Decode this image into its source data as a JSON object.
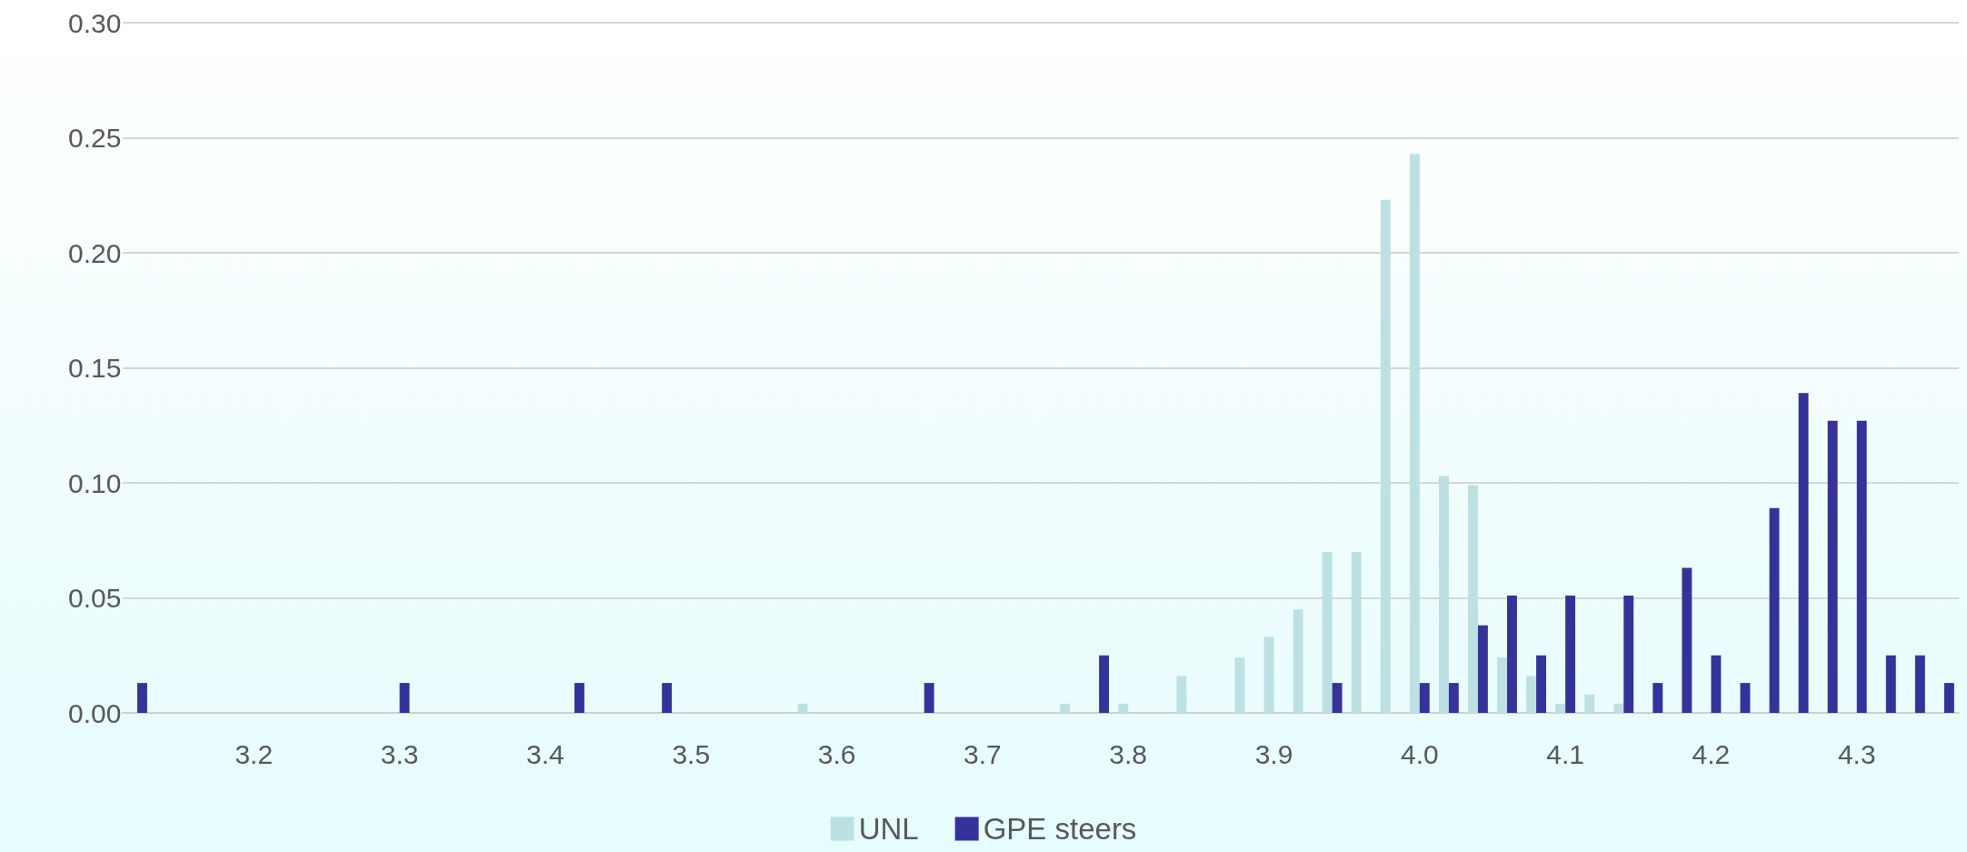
{
  "chart_data": {
    "type": "bar",
    "xlim": [
      3.11,
      4.37
    ],
    "xticks": [
      3.2,
      3.3,
      3.4,
      3.5,
      3.6,
      3.7,
      3.8,
      3.9,
      {
        "value": 4,
        "label": "4.0"
      },
      4.1,
      4.2,
      4.3
    ],
    "ylim": [
      0,
      0.3
    ],
    "yticks": [
      {
        "value": 0,
        "label": "0.00"
      },
      0.05,
      {
        "value": 0.1,
        "label": "0.10"
      },
      0.15,
      {
        "value": 0.2,
        "label": "0.20"
      },
      0.25,
      {
        "value": 0.3,
        "label": "0.30"
      }
    ],
    "grid": "y",
    "legend": "bottom",
    "series": [
      {
        "name": "UNL",
        "color": "#bde0e3",
        "x": [
          3.58,
          3.76,
          3.8,
          3.84,
          3.88,
          3.9,
          3.92,
          3.94,
          3.96,
          3.98,
          4.0,
          4.02,
          4.04,
          4.06,
          4.08,
          4.1,
          4.12,
          4.14
        ],
        "values": [
          0.004,
          0.004,
          0.004,
          0.016,
          0.024,
          0.033,
          0.045,
          0.07,
          0.07,
          0.223,
          0.243,
          0.103,
          0.099,
          0.024,
          0.016,
          0.004,
          0.008,
          0.004
        ]
      },
      {
        "name": "GPE steers",
        "color": "#35339a",
        "x": [
          3.12,
          3.3,
          3.42,
          3.48,
          3.66,
          3.78,
          3.94,
          4.0,
          4.02,
          4.04,
          4.06,
          4.08,
          4.1,
          4.14,
          4.16,
          4.18,
          4.2,
          4.22,
          4.24,
          4.26,
          4.28,
          4.3,
          4.32,
          4.34,
          4.36
        ],
        "values": [
          0.013,
          0.013,
          0.013,
          0.013,
          0.013,
          0.025,
          0.013,
          0.013,
          0.013,
          0.038,
          0.051,
          0.025,
          0.051,
          0.051,
          0.013,
          0.063,
          0.025,
          0.013,
          0.089,
          0.139,
          0.127,
          0.127,
          0.025,
          0.025,
          0.013
        ]
      }
    ]
  }
}
